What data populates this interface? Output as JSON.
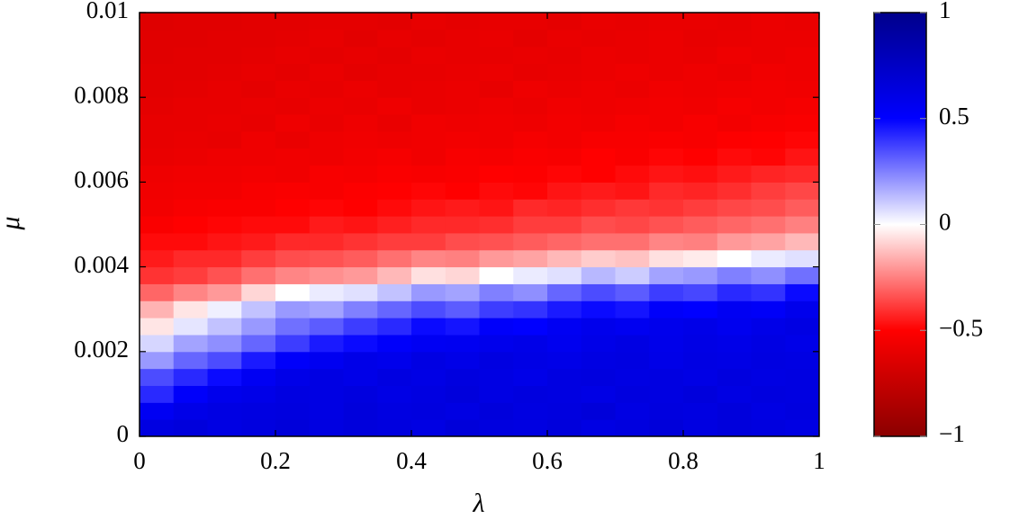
{
  "chart_data": {
    "type": "heatmap",
    "x_label": "λ",
    "y_label": "μ",
    "x": [
      0.025,
      0.075,
      0.125,
      0.175,
      0.225,
      0.275,
      0.325,
      0.375,
      0.425,
      0.475,
      0.525,
      0.575,
      0.625,
      0.675,
      0.725,
      0.775,
      0.825,
      0.875,
      0.925,
      0.975
    ],
    "y": [
      0.0002,
      0.0006,
      0.001,
      0.0014,
      0.0018,
      0.0022,
      0.0026,
      0.003,
      0.0034,
      0.0038,
      0.0042,
      0.0046,
      0.005,
      0.0054,
      0.0058,
      0.0062,
      0.0066,
      0.007,
      0.0074,
      0.0078,
      0.0082,
      0.0086,
      0.009,
      0.0094,
      0.0098
    ],
    "z": [
      [
        0.63,
        0.65,
        0.62,
        0.64,
        0.66,
        0.63,
        0.65,
        0.64,
        0.62,
        0.66,
        0.64,
        0.63,
        0.65,
        0.62,
        0.64,
        0.66,
        0.63,
        0.65,
        0.64,
        0.62
      ],
      [
        0.55,
        0.6,
        0.62,
        0.63,
        0.64,
        0.62,
        0.65,
        0.63,
        0.64,
        0.62,
        0.65,
        0.63,
        0.64,
        0.66,
        0.62,
        0.64,
        0.63,
        0.65,
        0.62,
        0.64
      ],
      [
        0.42,
        0.52,
        0.58,
        0.6,
        0.63,
        0.62,
        0.64,
        0.61,
        0.63,
        0.65,
        0.62,
        0.64,
        0.63,
        0.61,
        0.64,
        0.63,
        0.65,
        0.62,
        0.64,
        0.63
      ],
      [
        0.35,
        0.42,
        0.48,
        0.55,
        0.6,
        0.62,
        0.6,
        0.63,
        0.61,
        0.64,
        0.62,
        0.6,
        0.63,
        0.64,
        0.62,
        0.63,
        0.61,
        0.64,
        0.62,
        0.63
      ],
      [
        0.2,
        0.3,
        0.35,
        0.45,
        0.52,
        0.56,
        0.6,
        0.58,
        0.62,
        0.6,
        0.63,
        0.61,
        0.6,
        0.62,
        0.63,
        0.6,
        0.62,
        0.61,
        0.63,
        0.62
      ],
      [
        0.08,
        0.18,
        0.22,
        0.3,
        0.38,
        0.45,
        0.48,
        0.52,
        0.55,
        0.56,
        0.58,
        0.6,
        0.57,
        0.6,
        0.62,
        0.59,
        0.61,
        0.6,
        0.62,
        0.6
      ],
      [
        -0.05,
        0.05,
        0.12,
        0.2,
        0.28,
        0.32,
        0.38,
        0.42,
        0.48,
        0.46,
        0.52,
        0.5,
        0.55,
        0.58,
        0.56,
        0.58,
        0.6,
        0.57,
        0.6,
        0.62
      ],
      [
        -0.15,
        -0.05,
        0.03,
        0.12,
        0.2,
        0.18,
        0.25,
        0.3,
        0.35,
        0.32,
        0.38,
        0.4,
        0.45,
        0.48,
        0.46,
        0.52,
        0.5,
        0.55,
        0.53,
        0.58
      ],
      [
        -0.3,
        -0.24,
        -0.2,
        -0.08,
        0,
        0.04,
        0.06,
        0.12,
        0.2,
        0.18,
        0.25,
        0.22,
        0.3,
        0.35,
        0.32,
        0.38,
        0.36,
        0.42,
        0.4,
        0.48
      ],
      [
        -0.4,
        -0.38,
        -0.34,
        -0.28,
        -0.24,
        -0.22,
        -0.2,
        -0.14,
        -0.06,
        -0.08,
        0,
        0.04,
        0.06,
        0.14,
        0.1,
        0.18,
        0.2,
        0.25,
        0.22,
        0.28
      ],
      [
        -0.45,
        -0.42,
        -0.42,
        -0.38,
        -0.35,
        -0.34,
        -0.32,
        -0.28,
        -0.24,
        -0.25,
        -0.2,
        -0.18,
        -0.14,
        -0.1,
        -0.12,
        -0.06,
        -0.04,
        0,
        0.04,
        0.06
      ],
      [
        -0.48,
        -0.48,
        -0.46,
        -0.45,
        -0.42,
        -0.42,
        -0.4,
        -0.38,
        -0.38,
        -0.35,
        -0.34,
        -0.32,
        -0.3,
        -0.28,
        -0.28,
        -0.24,
        -0.25,
        -0.2,
        -0.18,
        -0.14
      ],
      [
        -0.52,
        -0.5,
        -0.49,
        -0.48,
        -0.48,
        -0.45,
        -0.46,
        -0.44,
        -0.42,
        -0.42,
        -0.41,
        -0.38,
        -0.38,
        -0.35,
        -0.36,
        -0.34,
        -0.32,
        -0.3,
        -0.28,
        -0.25
      ],
      [
        -0.55,
        -0.53,
        -0.52,
        -0.52,
        -0.5,
        -0.49,
        -0.5,
        -0.48,
        -0.46,
        -0.45,
        -0.46,
        -0.42,
        -0.43,
        -0.41,
        -0.39,
        -0.4,
        -0.38,
        -0.36,
        -0.35,
        -0.32
      ],
      [
        -0.56,
        -0.55,
        -0.55,
        -0.53,
        -0.52,
        -0.53,
        -0.51,
        -0.5,
        -0.49,
        -0.5,
        -0.48,
        -0.49,
        -0.46,
        -0.45,
        -0.46,
        -0.42,
        -0.43,
        -0.41,
        -0.38,
        -0.36
      ],
      [
        -0.57,
        -0.56,
        -0.56,
        -0.55,
        -0.56,
        -0.53,
        -0.54,
        -0.52,
        -0.53,
        -0.52,
        -0.5,
        -0.51,
        -0.49,
        -0.5,
        -0.48,
        -0.46,
        -0.47,
        -0.45,
        -0.43,
        -0.42
      ],
      [
        -0.59,
        -0.58,
        -0.57,
        -0.57,
        -0.56,
        -0.57,
        -0.55,
        -0.54,
        -0.56,
        -0.53,
        -0.54,
        -0.52,
        -0.53,
        -0.5,
        -0.52,
        -0.49,
        -0.5,
        -0.48,
        -0.49,
        -0.46
      ],
      [
        -0.6,
        -0.59,
        -0.6,
        -0.57,
        -0.59,
        -0.57,
        -0.56,
        -0.57,
        -0.56,
        -0.55,
        -0.56,
        -0.54,
        -0.55,
        -0.53,
        -0.53,
        -0.52,
        -0.53,
        -0.51,
        -0.5,
        -0.49
      ],
      [
        -0.6,
        -0.6,
        -0.59,
        -0.6,
        -0.57,
        -0.59,
        -0.57,
        -0.59,
        -0.56,
        -0.57,
        -0.56,
        -0.57,
        -0.55,
        -0.56,
        -0.54,
        -0.55,
        -0.53,
        -0.55,
        -0.53,
        -0.52
      ],
      [
        -0.61,
        -0.6,
        -0.6,
        -0.59,
        -0.6,
        -0.58,
        -0.59,
        -0.57,
        -0.59,
        -0.58,
        -0.57,
        -0.58,
        -0.56,
        -0.57,
        -0.56,
        -0.55,
        -0.56,
        -0.54,
        -0.55,
        -0.54
      ],
      [
        -0.62,
        -0.61,
        -0.6,
        -0.61,
        -0.59,
        -0.6,
        -0.58,
        -0.6,
        -0.59,
        -0.58,
        -0.6,
        -0.57,
        -0.58,
        -0.57,
        -0.58,
        -0.56,
        -0.57,
        -0.56,
        -0.55,
        -0.56
      ],
      [
        -0.62,
        -0.62,
        -0.61,
        -0.6,
        -0.61,
        -0.59,
        -0.61,
        -0.6,
        -0.6,
        -0.59,
        -0.58,
        -0.6,
        -0.59,
        -0.58,
        -0.57,
        -0.58,
        -0.57,
        -0.58,
        -0.56,
        -0.57
      ],
      [
        -0.63,
        -0.62,
        -0.62,
        -0.61,
        -0.6,
        -0.61,
        -0.6,
        -0.61,
        -0.59,
        -0.6,
        -0.6,
        -0.59,
        -0.6,
        -0.58,
        -0.59,
        -0.58,
        -0.59,
        -0.57,
        -0.58,
        -0.57
      ],
      [
        -0.63,
        -0.63,
        -0.62,
        -0.62,
        -0.61,
        -0.6,
        -0.62,
        -0.6,
        -0.61,
        -0.6,
        -0.59,
        -0.61,
        -0.59,
        -0.6,
        -0.59,
        -0.58,
        -0.6,
        -0.59,
        -0.58,
        -0.58
      ],
      [
        -0.64,
        -0.63,
        -0.63,
        -0.62,
        -0.62,
        -0.61,
        -0.61,
        -0.62,
        -0.6,
        -0.61,
        -0.6,
        -0.6,
        -0.61,
        -0.59,
        -0.6,
        -0.59,
        -0.59,
        -0.6,
        -0.58,
        -0.59
      ]
    ],
    "xlim": [
      0,
      1
    ],
    "xticks": [
      0,
      0.2,
      0.4,
      0.6,
      0.8,
      1
    ],
    "ylim": [
      0,
      0.01
    ],
    "yticks": [
      0,
      0.002,
      0.004,
      0.006,
      0.008,
      0.01
    ],
    "zlim": [
      -1,
      1
    ],
    "zticks": [
      {
        "value": -1,
        "label": "−1"
      },
      {
        "value": -0.5,
        "label": "−0.5"
      },
      0,
      0.5,
      1
    ],
    "colors": [
      "#8b0000",
      "#ff0000",
      "#ffffff",
      "#0000ff",
      "#00008b"
    ]
  }
}
